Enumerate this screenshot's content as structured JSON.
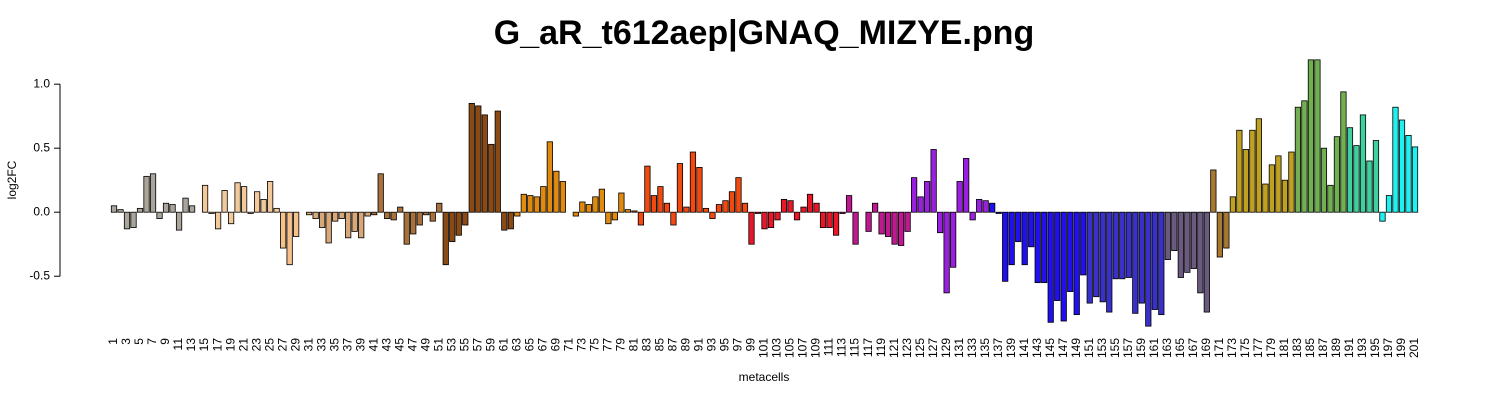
{
  "chart_data": {
    "type": "bar",
    "title": "G_aR_t612aep|GNAQ_MIZYE.png",
    "x_label": "metacells",
    "y_label": "log2FC",
    "categories": [
      1,
      null,
      3,
      null,
      5,
      null,
      7,
      null,
      9,
      null,
      11,
      null,
      13,
      null,
      15,
      null,
      17,
      null,
      19,
      null,
      21,
      null,
      23,
      null,
      25,
      null,
      27,
      null,
      29,
      null,
      31,
      null,
      33,
      null,
      35,
      null,
      37,
      null,
      39,
      null,
      41,
      null,
      43,
      null,
      45,
      null,
      47,
      null,
      49,
      null,
      51,
      null,
      53,
      null,
      55,
      null,
      57,
      null,
      59,
      null,
      61,
      null,
      63,
      null,
      65,
      null,
      67,
      null,
      69,
      null,
      71,
      null,
      73,
      null,
      75,
      null,
      77,
      null,
      79,
      null,
      81,
      null,
      83,
      null,
      85,
      null,
      87,
      null,
      89,
      null,
      91,
      null,
      93,
      null,
      95,
      null,
      97,
      null,
      99,
      null,
      101,
      null,
      103,
      null,
      105,
      null,
      107,
      null,
      109,
      null,
      111,
      null,
      113,
      null,
      115,
      null,
      117,
      null,
      119,
      null,
      121,
      null,
      123,
      null,
      125,
      null,
      127,
      null,
      129,
      null,
      131,
      null,
      133,
      null,
      135,
      null,
      137,
      null,
      139,
      null,
      141,
      null,
      143,
      null,
      145,
      null,
      147,
      null,
      149,
      null,
      151,
      null,
      153,
      null,
      155,
      null,
      157,
      null,
      159,
      null,
      161,
      null,
      163,
      null,
      165,
      null,
      167,
      null,
      169,
      null,
      171,
      null,
      173,
      null,
      175,
      null,
      177,
      null,
      179,
      null,
      181,
      null,
      183,
      null,
      185,
      null,
      187,
      null,
      189,
      null,
      191,
      null,
      193,
      null,
      195,
      null,
      197,
      null,
      199,
      null,
      201
    ],
    "values": [
      0.05,
      0.02,
      -0.13,
      -0.12,
      0.03,
      0.28,
      0.3,
      -0.05,
      0.07,
      0.06,
      -0.14,
      0.11,
      0.05,
      0.0,
      0.21,
      -0.01,
      -0.13,
      0.17,
      -0.09,
      0.23,
      0.2,
      -0.01,
      0.16,
      0.1,
      0.24,
      0.03,
      -0.28,
      -0.41,
      -0.19,
      0.0,
      -0.02,
      -0.05,
      -0.12,
      -0.24,
      -0.07,
      -0.05,
      -0.2,
      -0.15,
      -0.2,
      -0.03,
      -0.02,
      0.3,
      -0.05,
      -0.06,
      0.04,
      -0.25,
      -0.17,
      -0.1,
      -0.02,
      -0.07,
      0.07,
      -0.41,
      -0.23,
      -0.18,
      -0.1,
      0.85,
      0.83,
      0.76,
      0.53,
      0.79,
      -0.14,
      -0.13,
      -0.03,
      0.14,
      0.13,
      0.12,
      0.2,
      0.55,
      0.32,
      0.24,
      0.0,
      -0.03,
      0.08,
      0.06,
      0.12,
      0.18,
      -0.09,
      -0.06,
      0.15,
      0.02,
      0.01,
      -0.1,
      0.36,
      0.13,
      0.2,
      0.07,
      -0.1,
      0.38,
      0.04,
      0.47,
      0.35,
      0.03,
      -0.05,
      0.06,
      0.09,
      0.16,
      0.27,
      0.07,
      -0.25,
      -0.01,
      -0.13,
      -0.12,
      -0.06,
      0.1,
      0.09,
      -0.06,
      0.04,
      0.14,
      0.07,
      -0.12,
      -0.12,
      -0.18,
      -0.01,
      0.13,
      -0.25,
      0.0,
      -0.15,
      0.07,
      -0.17,
      -0.19,
      -0.25,
      -0.26,
      -0.15,
      0.27,
      0.12,
      0.24,
      0.49,
      -0.16,
      -0.63,
      -0.43,
      0.24,
      0.42,
      -0.06,
      0.1,
      0.09,
      0.07,
      -0.01,
      -0.54,
      -0.41,
      -0.23,
      -0.41,
      -0.27,
      -0.55,
      -0.55,
      -0.86,
      -0.69,
      -0.85,
      -0.62,
      -0.8,
      -0.49,
      -0.71,
      -0.66,
      -0.7,
      -0.78,
      -0.52,
      -0.52,
      -0.51,
      -0.79,
      -0.71,
      -0.89,
      -0.76,
      -0.8,
      -0.37,
      -0.3,
      -0.51,
      -0.47,
      -0.44,
      -0.63,
      -0.78,
      0.33,
      -0.35,
      -0.28,
      0.12,
      0.64,
      0.49,
      0.64,
      0.73,
      0.22,
      0.37,
      0.44,
      0.25,
      0.47,
      0.82,
      0.87,
      1.19,
      1.19,
      0.5,
      0.21,
      0.59,
      0.94,
      0.66,
      0.52,
      0.76,
      0.4,
      0.56,
      -0.07,
      0.13,
      0.82,
      0.72,
      0.6,
      0.51
    ],
    "colors": [
      "#a9a59b",
      "#a9a59b",
      "#a9a59b",
      "#a9a59b",
      "#a9a59b",
      "#a9a59b",
      "#a9a59b",
      "#a9a59b",
      "#a9a59b",
      "#a9a59b",
      "#a9a59b",
      "#a9a59b",
      "#a9a59b",
      "#f1c99b",
      "#f1c99b",
      "#f1c99b",
      "#f1c99b",
      "#f1c99b",
      "#f1c99b",
      "#f1c99b",
      "#f1c99b",
      "#f1c99b",
      "#f1c99b",
      "#f1c99b",
      "#f1c99b",
      "#f1c99b",
      "#f5c08a",
      "#f5c08a",
      "#f5c08a",
      "#d8a878",
      "#d8a878",
      "#d8a878",
      "#d8a878",
      "#d8a878",
      "#d8a878",
      "#d8a878",
      "#d8a878",
      "#d8a878",
      "#d8a878",
      "#d8a878",
      "#a8703a",
      "#a8703a",
      "#a8703a",
      "#a8703a",
      "#a8703a",
      "#a8703a",
      "#a8703a",
      "#a8703a",
      "#a8703a",
      "#a8703a",
      "#a8703a",
      "#8b4a14",
      "#8b4a14",
      "#8b4a14",
      "#8b4a14",
      "#8b4a14",
      "#8b4a14",
      "#8b4a14",
      "#8b4a14",
      "#8b4a14",
      "#8b4a14",
      "#8b4a14",
      "#e08a10",
      "#e08a10",
      "#e08a10",
      "#e08a10",
      "#e08a10",
      "#e08a10",
      "#e08a10",
      "#e08a10",
      "#e08a10",
      "#e08a10",
      "#e08a10",
      "#e08a10",
      "#e08a10",
      "#e08a10",
      "#e08a10",
      "#e08a10",
      "#e08a10",
      "#e08a10",
      "#f04a10",
      "#f04a10",
      "#f04a10",
      "#f04a10",
      "#f04a10",
      "#f04a10",
      "#f04a10",
      "#f04a10",
      "#f04a10",
      "#f04a10",
      "#f04a10",
      "#f04a10",
      "#f04a10",
      "#f04a10",
      "#f04a10",
      "#f04a10",
      "#f04a10",
      "#f04a10",
      "#e8182a",
      "#e8182a",
      "#e8182a",
      "#e8182a",
      "#e8182a",
      "#e8182a",
      "#e8182a",
      "#e8182a",
      "#e8182a",
      "#e8182a",
      "#e8182a",
      "#e8182a",
      "#e8182a",
      "#e8182a",
      "#c01890",
      "#c01890",
      "#c01890",
      "#c01890",
      "#c01890",
      "#c01890",
      "#c01890",
      "#c01890",
      "#c01890",
      "#c01890",
      "#c01890",
      "#9a20e0",
      "#9a20e0",
      "#9a20e0",
      "#9a20e0",
      "#9a20e0",
      "#9a20e0",
      "#9a20e0",
      "#9a20e0",
      "#9a20e0",
      "#9a20e0",
      "#9a20e0",
      "#9a20e0",
      "#2010f0",
      "#2010f0",
      "#2010f0",
      "#2010f0",
      "#2010f0",
      "#2010f0",
      "#2010f0",
      "#2010f0",
      "#2010f0",
      "#2010f0",
      "#2010f0",
      "#2010f0",
      "#2010f0",
      "#2010f0",
      "#2010f0",
      "#3830c8",
      "#3830c8",
      "#3830c8",
      "#3830c8",
      "#3830c8",
      "#3830c8",
      "#3830c8",
      "#3830c8",
      "#3830c8",
      "#3830c8",
      "#3830c8",
      "#3830c8",
      "#6a5a80",
      "#6a5a80",
      "#6a5a80",
      "#6a5a80",
      "#6a5a80",
      "#6a5a80",
      "#6a5a80",
      "#a87830",
      "#a87830",
      "#a87830",
      "#c0a020",
      "#c0a020",
      "#c0a020",
      "#c0a020",
      "#c0a020",
      "#c0a020",
      "#c0a020",
      "#c0a020",
      "#c0a020",
      "#c0a020",
      "#70b050",
      "#70b050",
      "#70b050",
      "#70b050",
      "#70b050",
      "#70b050",
      "#70b050",
      "#70b050",
      "#40d0a0",
      "#40d0a0",
      "#40d0a0",
      "#40d0a0",
      "#40d0a0",
      "#20f0f0",
      "#20f0f0",
      "#20f0f0",
      "#20f0f0",
      "#20f0f0",
      "#20f0f0"
    ],
    "ylim": [
      -0.92,
      1.22
    ],
    "yticks": [
      -0.5,
      {
        "value": 0,
        "label": "0.0"
      },
      0.5,
      {
        "value": 1,
        "label": "1.0"
      }
    ],
    "grid": false
  }
}
